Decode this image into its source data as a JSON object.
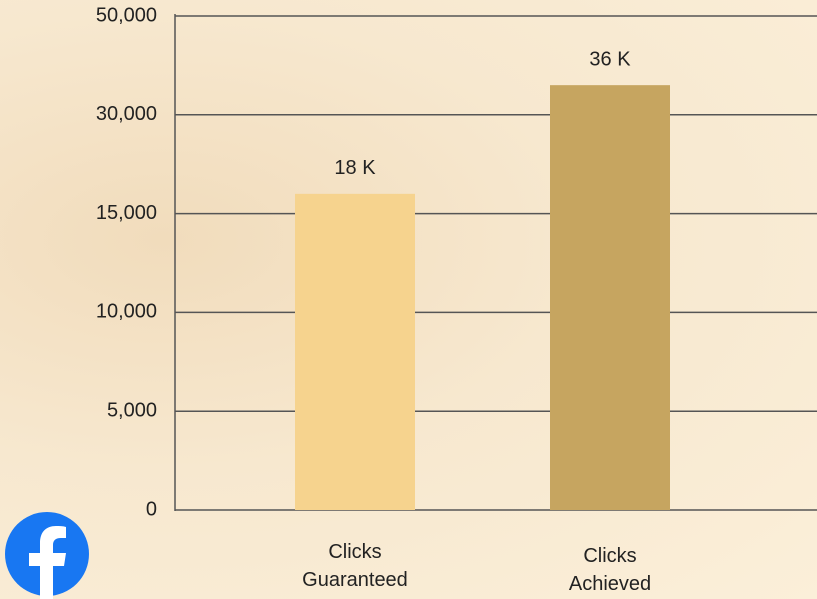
{
  "chart_data": {
    "type": "bar",
    "categories": [
      "Clicks Guaranteed",
      "Clicks Achieved"
    ],
    "values": [
      18000,
      36000
    ],
    "value_labels": [
      "18 K",
      "36 K"
    ],
    "colors": [
      "#f6d38e",
      "#c6a560"
    ],
    "ylim": [
      0,
      50000
    ],
    "yticks": [
      0,
      {
        "value": 5000,
        "label": "5,000"
      },
      {
        "value": 10000,
        "label": "10,000"
      },
      {
        "value": 15000,
        "label": "15,000"
      },
      {
        "value": 30000,
        "label": "30,000"
      },
      {
        "value": 50000,
        "label": "50,000"
      }
    ],
    "grid": true
  }
}
